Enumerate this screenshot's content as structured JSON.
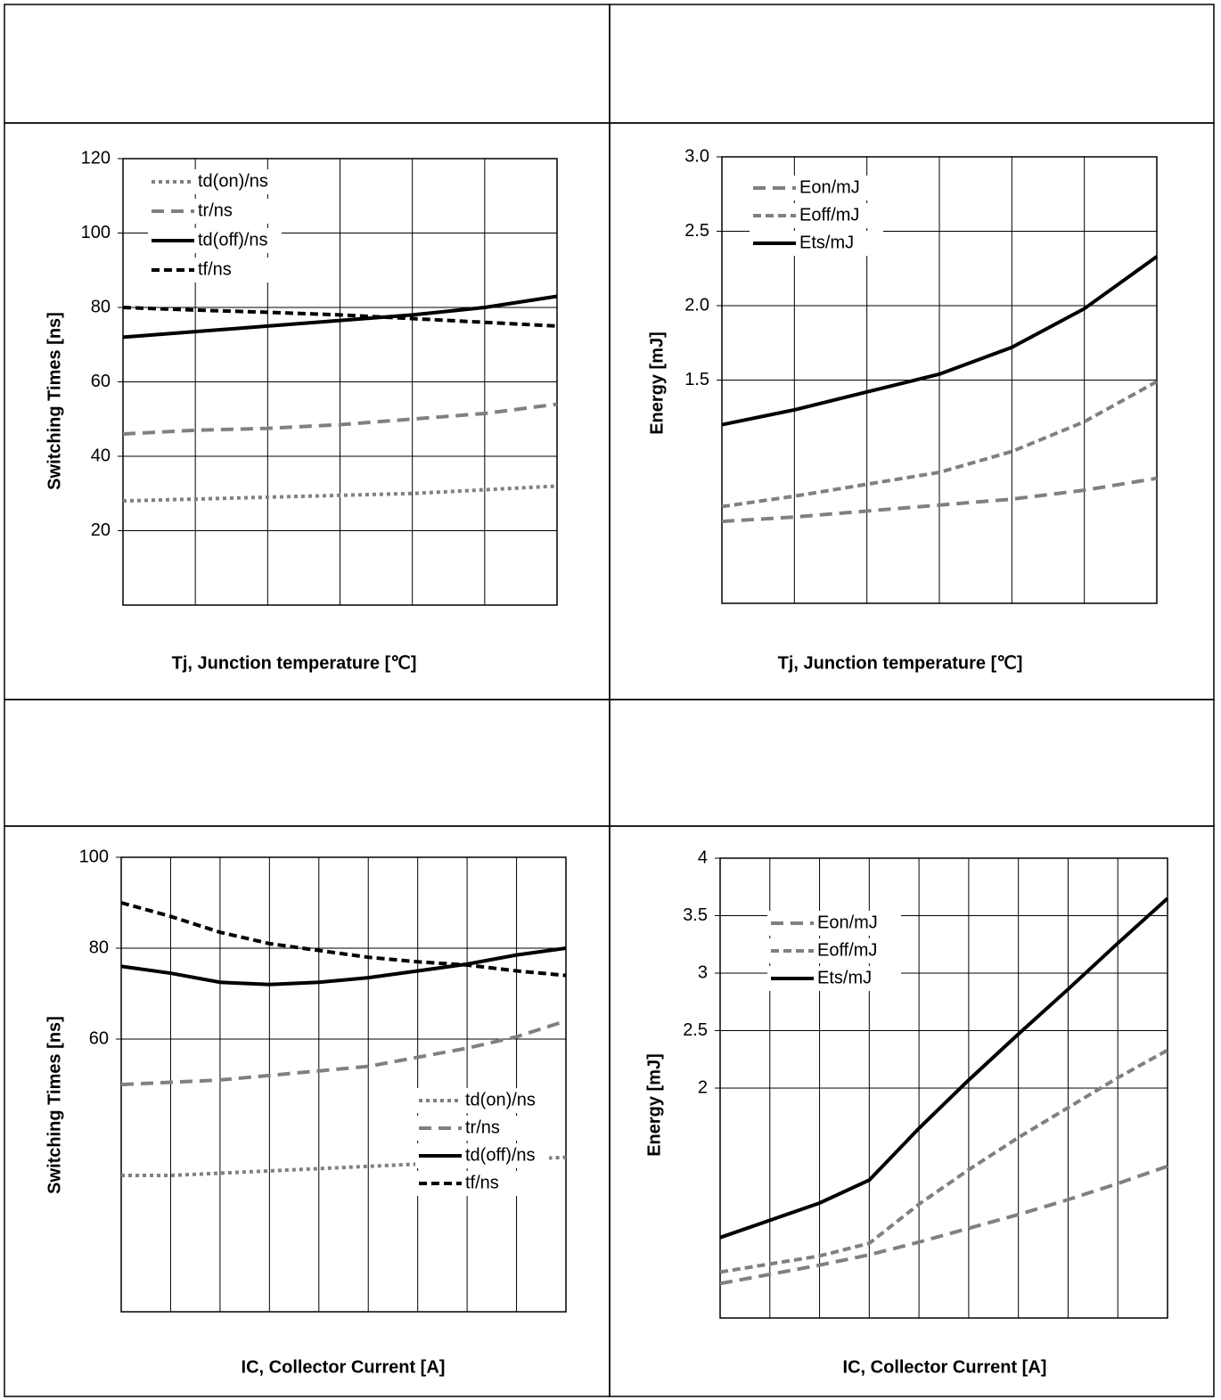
{
  "chart_data": [
    {
      "type": "line",
      "ylabel": "Switching Times [ns]",
      "xlabel": "Tj, Junction temperature [℃]",
      "categories": [
        null,
        null,
        null,
        null,
        null,
        null,
        null
      ],
      "ylim": [
        0,
        120
      ],
      "yticks": [
        20,
        40,
        60,
        80,
        100,
        120
      ],
      "grid": true,
      "series": [
        {
          "name": "td(on)/ns",
          "color": "#808080",
          "dash": "4,4",
          "values": [
            28,
            28.5,
            29,
            29.5,
            30,
            31,
            32
          ]
        },
        {
          "name": "tr/ns",
          "color": "#808080",
          "dash": "14,8",
          "values": [
            46,
            47,
            47.5,
            48.5,
            50,
            51.5,
            54
          ]
        },
        {
          "name": "td(off)/ns",
          "color": "#000000",
          "dash": "none",
          "values": [
            72,
            73.5,
            75,
            76.5,
            78,
            80,
            83
          ]
        },
        {
          "name": "tf/ns",
          "color": "#000000",
          "dash": "9,5",
          "values": [
            80,
            79.3,
            78.7,
            78,
            77,
            76,
            75
          ]
        }
      ]
    },
    {
      "type": "line",
      "ylabel": "Energy [mJ]",
      "xlabel": "Tj, Junction temperature [℃]",
      "categories": [
        null,
        null,
        null,
        null,
        null,
        null,
        null
      ],
      "ylim": [
        0,
        3
      ],
      "yticks": [
        {
          "value": 1.5,
          "label": "1.5"
        },
        {
          "value": 2,
          "label": "2.0"
        },
        {
          "value": 2.5,
          "label": "2.5"
        },
        {
          "value": 3,
          "label": "3.0"
        }
      ],
      "grid": true,
      "series": [
        {
          "name": "Eon/mJ",
          "color": "#808080",
          "dash": "14,8",
          "values": [
            0.55,
            0.58,
            0.62,
            0.66,
            0.7,
            0.76,
            0.84
          ]
        },
        {
          "name": "Eoff/mJ",
          "color": "#808080",
          "dash": "9,5",
          "values": [
            0.65,
            0.72,
            0.8,
            0.88,
            1.02,
            1.22,
            1.49
          ]
        },
        {
          "name": "Ets/mJ",
          "color": "#000000",
          "dash": "none",
          "values": [
            1.2,
            1.3,
            1.42,
            1.54,
            1.72,
            1.98,
            2.33
          ]
        }
      ]
    },
    {
      "type": "line",
      "ylabel": "Switching Times [ns]",
      "xlabel": "IC, Collector Current [A]",
      "categories": [
        null,
        null,
        null,
        null,
        null,
        null,
        null,
        null,
        null,
        null
      ],
      "ylim": [
        0,
        100
      ],
      "yticks": [
        60,
        80,
        100
      ],
      "grid": true,
      "series": [
        {
          "name": "td(on)/ns",
          "color": "#808080",
          "dash": "4,4",
          "values": [
            30,
            30,
            30.5,
            31,
            31.5,
            32,
            32.5,
            33,
            33.5,
            34
          ]
        },
        {
          "name": "tr/ns",
          "color": "#808080",
          "dash": "14,8",
          "values": [
            50,
            50.5,
            51,
            52,
            53,
            54,
            56,
            58,
            60.5,
            64
          ]
        },
        {
          "name": "td(off)/ns",
          "color": "#000000",
          "dash": "none",
          "values": [
            76,
            74.5,
            72.5,
            72,
            72.5,
            73.5,
            75,
            76.5,
            78.5,
            80
          ]
        },
        {
          "name": "tf/ns",
          "color": "#000000",
          "dash": "9,5",
          "values": [
            90,
            87,
            83.5,
            81,
            79.5,
            78,
            77,
            76.3,
            75,
            74
          ]
        }
      ]
    },
    {
      "type": "line",
      "ylabel": "Energy [mJ]",
      "xlabel": "IC, Collector Current [A]",
      "categories": [
        null,
        null,
        null,
        null,
        null,
        null,
        null,
        null,
        null,
        null
      ],
      "ylim": [
        0,
        4
      ],
      "yticks": [
        2,
        2.5,
        3,
        3.5,
        4
      ],
      "grid": true,
      "series": [
        {
          "name": "Eon/mJ",
          "color": "#808080",
          "dash": "14,8",
          "values": [
            0.3,
            0.38,
            0.46,
            0.55,
            0.66,
            0.78,
            0.9,
            1.03,
            1.17,
            1.32
          ]
        },
        {
          "name": "Eoff/mJ",
          "color": "#808080",
          "dash": "9,5",
          "values": [
            0.4,
            0.47,
            0.54,
            0.65,
            0.99,
            1.29,
            1.57,
            1.83,
            2.09,
            2.33
          ]
        },
        {
          "name": "Ets/mJ",
          "color": "#000000",
          "dash": "none",
          "values": [
            0.7,
            0.85,
            1.0,
            1.2,
            1.65,
            2.07,
            2.47,
            2.86,
            3.26,
            3.65
          ]
        }
      ]
    }
  ]
}
